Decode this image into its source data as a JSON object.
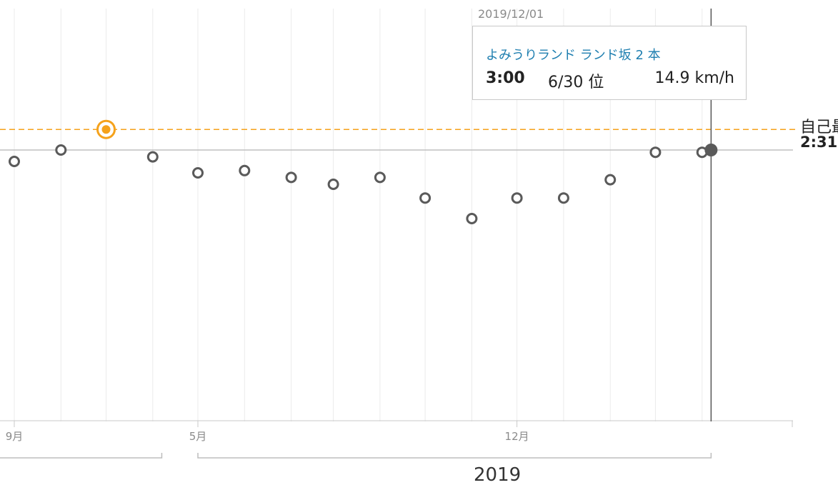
{
  "chart_data": {
    "type": "scatter",
    "series": [
      {
        "x": [
          "2018-08-25",
          "2018-09-25",
          "2018-10-25",
          "2018-11-25",
          "2018-12-25",
          "2019-01-25",
          "2019-02-25",
          "2019-03-25",
          "2019-04-25",
          "2019-05-25",
          "2019-06-25",
          "2019-07-25",
          "2019-08-25",
          "2019-09-25",
          "2019-10-25",
          "2019-11-25",
          "2019-12-01"
        ],
        "y": [
          "2:36",
          "2:31",
          "2:22",
          "2:34",
          "2:41",
          "2:40",
          "2:43",
          "2:46",
          "2:43",
          "2:52",
          "3:01",
          "2:52",
          "2:52",
          "2:44",
          "2:32",
          "2:32",
          "2:31"
        ]
      }
    ],
    "personal_best": {
      "label": "自己最",
      "value": "2:22"
    },
    "latest_value": "2:31",
    "x_ticks": [
      "9月",
      "5月",
      "12月"
    ],
    "year_label": "2019",
    "hover_date": "2019/12/01",
    "colors": {
      "points": "#5a5a5a",
      "best": "#f5a21b",
      "grid": "#ebebeb",
      "axis": "#c8c8c8",
      "crosshair": "#555555"
    }
  },
  "tooltip": {
    "title": "よみうりランド ランド坂 2 本",
    "time": "3:00",
    "rank": "6/30 位",
    "speed": "14.9 km/h"
  }
}
